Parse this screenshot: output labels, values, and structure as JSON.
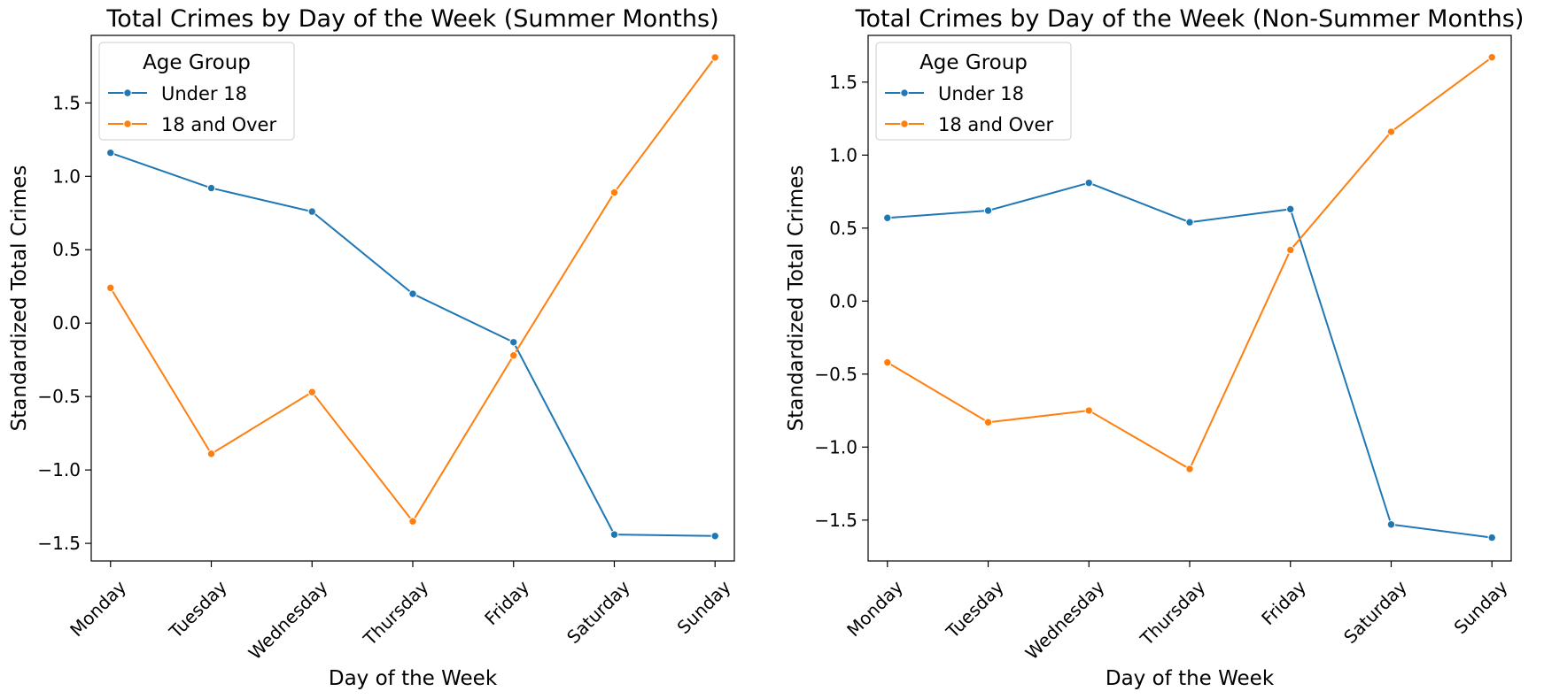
{
  "colors": {
    "under_18": "#1f77b4",
    "adult": "#ff7f0e",
    "axes": "#000000",
    "background": "#ffffff",
    "legend_border": "#cccccc"
  },
  "chart_data": [
    {
      "type": "line",
      "title": "Total Crimes by Day of the Week (Summer Months)",
      "xlabel": "Day of the Week",
      "ylabel": "Standardized Total Crimes",
      "categories": [
        "Monday",
        "Tuesday",
        "Wednesday",
        "Thursday",
        "Friday",
        "Saturday",
        "Sunday"
      ],
      "ylim": [
        -1.62,
        1.96
      ],
      "yticks": [
        -1.5,
        -1.0,
        -0.5,
        0.0,
        0.5,
        1.0,
        1.5
      ],
      "ytick_labels": [
        "−1.5",
        "−1.0",
        "−0.5",
        "0.0",
        "0.5",
        "1.0",
        "1.5"
      ],
      "grid": false,
      "legend": {
        "title": "Age Group",
        "position": "top-left"
      },
      "series": [
        {
          "name": "Under 18",
          "color": "#1f77b4",
          "marker": "circle",
          "values": [
            1.16,
            0.92,
            0.76,
            0.2,
            -0.13,
            -1.44,
            -1.45
          ]
        },
        {
          "name": "18 and Over",
          "color": "#ff7f0e",
          "marker": "circle",
          "values": [
            0.24,
            -0.89,
            -0.47,
            -1.35,
            -0.22,
            0.89,
            1.81
          ]
        }
      ]
    },
    {
      "type": "line",
      "title": "Total Crimes by Day of the Week (Non-Summer Months)",
      "xlabel": "Day of the Week",
      "ylabel": "Standardized Total Crimes",
      "categories": [
        "Monday",
        "Tuesday",
        "Wednesday",
        "Thursday",
        "Friday",
        "Saturday",
        "Sunday"
      ],
      "ylim": [
        -1.78,
        1.82
      ],
      "yticks": [
        -1.5,
        -1.0,
        -0.5,
        0.0,
        0.5,
        1.0,
        1.5
      ],
      "ytick_labels": [
        "−1.5",
        "−1.0",
        "−0.5",
        "0.0",
        "0.5",
        "1.0",
        "1.5"
      ],
      "grid": false,
      "legend": {
        "title": "Age Group",
        "position": "top-left"
      },
      "series": [
        {
          "name": "Under 18",
          "color": "#1f77b4",
          "marker": "circle",
          "values": [
            0.57,
            0.62,
            0.81,
            0.54,
            0.63,
            -1.53,
            -1.62
          ]
        },
        {
          "name": "18 and Over",
          "color": "#ff7f0e",
          "marker": "circle",
          "values": [
            -0.42,
            -0.83,
            -0.75,
            -1.15,
            0.35,
            1.16,
            1.67
          ]
        }
      ]
    }
  ]
}
